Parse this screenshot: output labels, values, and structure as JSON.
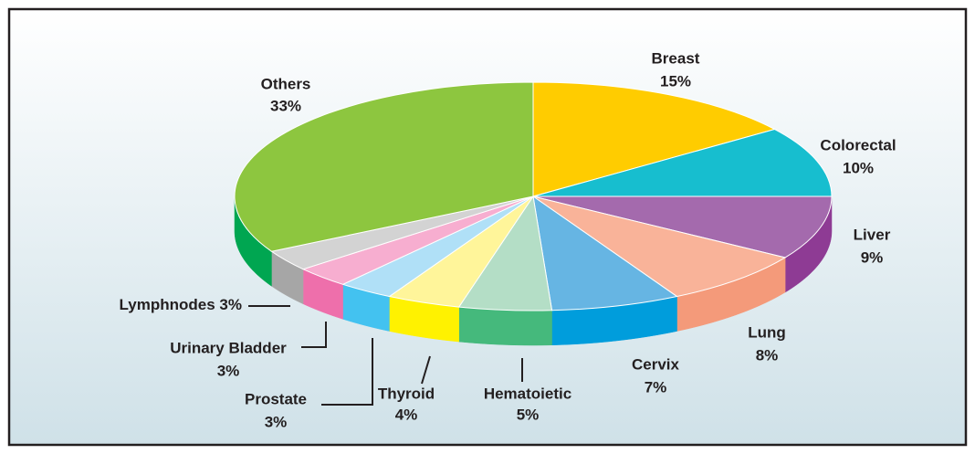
{
  "chart_data": {
    "type": "pie",
    "categories": [
      "Breast",
      "Colorectal",
      "Liver",
      "Lung",
      "Cervix",
      "Hematoietic",
      "Thyroid",
      "Prostate",
      "Urinary Bladder",
      "Lymphnodes",
      "Others"
    ],
    "values": [
      15,
      10,
      9,
      8,
      7,
      5,
      4,
      3,
      3,
      3,
      33
    ],
    "value_labels": [
      "15%",
      "10%",
      "9%",
      "8%",
      "7%",
      "5%",
      "4%",
      "3%",
      "3%",
      "3%",
      "33%"
    ],
    "colors": [
      "#ffcc00",
      "#17becf",
      "#a46aad",
      "#f9b399",
      "#66b5e3",
      "#b4dec6",
      "#fff59a",
      "#b0e0f7",
      "#f7aed0",
      "#d3d3d3",
      "#8dc63f"
    ],
    "side_colors": [
      "#e0a800",
      "#0fa0b5",
      "#8e3b94",
      "#f49a7a",
      "#009ddc",
      "#45b97c",
      "#fff200",
      "#43c2f0",
      "#ee6fab",
      "#a6a6a6",
      "#00a651"
    ]
  }
}
